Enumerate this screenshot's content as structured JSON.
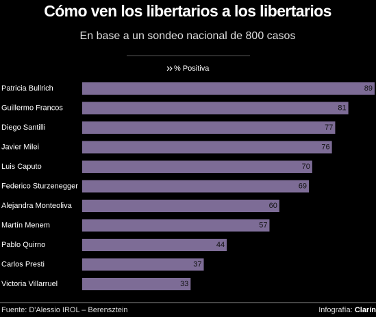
{
  "chart_data": {
    "type": "bar",
    "orientation": "horizontal",
    "title": "Cómo ven los libertarios a los libertarios",
    "subtitle": "En base a un sondeo nacional de 800 casos",
    "categories": [
      "Patricia Bullrich",
      "Guillermo Francos",
      "Diego Santilli",
      "Javier Milei",
      "Luis Caputo",
      "Federico Sturzenegger",
      "Alejandra Monteoliva",
      "Martín Menem",
      "Pablo Quirno",
      "Carlos Presti",
      "Victoria Villarruel"
    ],
    "series": [
      {
        "name": "% Positiva",
        "color": "#7d6c96",
        "values": [
          89,
          81,
          77,
          76,
          70,
          69,
          60,
          57,
          44,
          37,
          33
        ]
      }
    ],
    "source": "Fuente: D'Alessio IROL – Berensztein",
    "credit_label": "Infografía:",
    "credit_brand": "Clarín"
  }
}
